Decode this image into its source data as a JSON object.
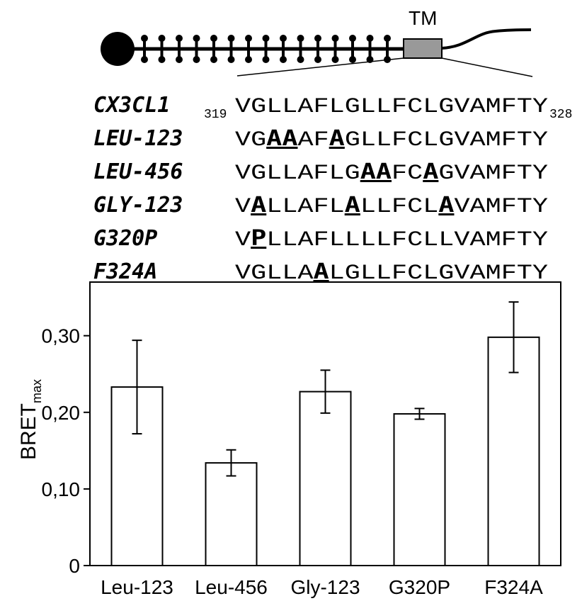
{
  "diagram": {
    "tm_label": "TM",
    "sequences": [
      {
        "name": "CX3CL1",
        "start": "319",
        "segments": [
          {
            "text": "VGLLAFLGLLFCLGVAMFTY",
            "mut": false
          }
        ],
        "end": "328"
      },
      {
        "name": "LEU-123",
        "segments": [
          {
            "text": "VG",
            "mut": false
          },
          {
            "text": "AA",
            "mut": true
          },
          {
            "text": "AF",
            "mut": false
          },
          {
            "text": "A",
            "mut": true
          },
          {
            "text": "GLLFCLGVAMFTY",
            "mut": false
          }
        ]
      },
      {
        "name": "LEU-456",
        "segments": [
          {
            "text": "VGLLAFLG",
            "mut": false
          },
          {
            "text": "AA",
            "mut": true
          },
          {
            "text": "FC",
            "mut": false
          },
          {
            "text": "A",
            "mut": true
          },
          {
            "text": "GVAMFTY",
            "mut": false
          }
        ]
      },
      {
        "name": "GLY-123",
        "segments": [
          {
            "text": "V",
            "mut": false
          },
          {
            "text": "A",
            "mut": true
          },
          {
            "text": "LLAFL",
            "mut": false
          },
          {
            "text": "A",
            "mut": true
          },
          {
            "text": "LLFCL",
            "mut": false
          },
          {
            "text": "A",
            "mut": true
          },
          {
            "text": "VAMFTY",
            "mut": false
          }
        ]
      },
      {
        "name": "G320P",
        "segments": [
          {
            "text": "V",
            "mut": false
          },
          {
            "text": "P",
            "mut": true
          },
          {
            "text": "LLAFLLLLFCLLVAMFTY",
            "mut": false
          }
        ]
      },
      {
        "name": "F324A",
        "segments": [
          {
            "text": "VGLLA",
            "mut": false
          },
          {
            "text": "A",
            "mut": true
          },
          {
            "text": "LGLLFCLGVAMFTY",
            "mut": false
          }
        ]
      }
    ]
  },
  "chart_data": {
    "type": "bar",
    "categories": [
      "Leu-123",
      "Leu-456",
      "Gly-123",
      "G320P",
      "F324A"
    ],
    "values": [
      0.233,
      0.134,
      0.227,
      0.198,
      0.298
    ],
    "errors": [
      0.061,
      0.017,
      0.028,
      0.007,
      0.046
    ],
    "ylabel": "BRET",
    "ylabel_sub": "max",
    "ylim": [
      0,
      0.37
    ],
    "yticks": [
      0,
      0.1,
      0.2,
      0.3
    ],
    "ytick_labels": [
      "0",
      "0,10",
      "0,20",
      "0,30"
    ],
    "bar_fill": "#ffffff",
    "bar_stroke": "#000000",
    "grid": false
  }
}
